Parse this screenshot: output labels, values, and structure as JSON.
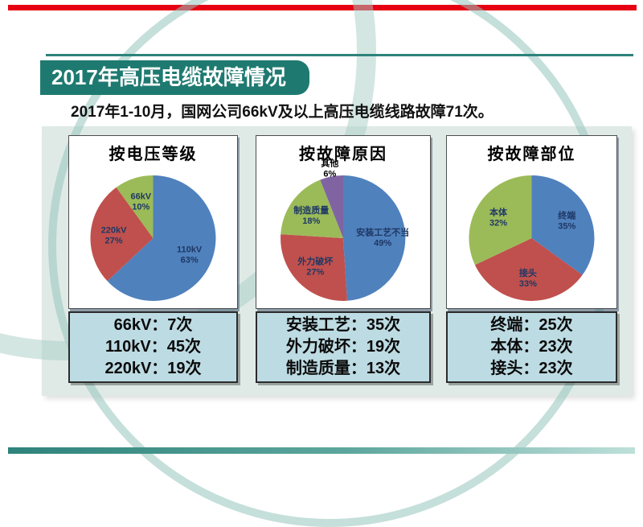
{
  "header": {
    "title": "2017年高压电缆故障情况",
    "subtitle": "2017年1-10月，国网公司66kV及以上高压电缆线路故障71次。"
  },
  "accents": {
    "top_bar_color": "#e60012",
    "title_box_color": "#1e7a70",
    "header_line_color": "#2e837b",
    "content_bg_color": "#dfeae6",
    "stats_box_color": "#bddbe3",
    "pie_label_color": "#1f3864"
  },
  "chart_data": [
    {
      "type": "pie",
      "title": "按电压等级",
      "legend_position": "none",
      "slices": [
        {
          "label": "110kV",
          "pct": 63,
          "color": "#4f81bd"
        },
        {
          "label": "220kV",
          "pct": 27,
          "color": "#c0504d"
        },
        {
          "label": "66kV",
          "pct": 10,
          "color": "#9bbb59"
        }
      ]
    },
    {
      "type": "pie",
      "title": "按故障原因",
      "legend_position": "none",
      "slices": [
        {
          "label": "安装工艺不当",
          "pct": 49,
          "color": "#4f81bd"
        },
        {
          "label": "外力破坏",
          "pct": 27,
          "color": "#c0504d"
        },
        {
          "label": "制造质量",
          "pct": 18,
          "color": "#9bbb59"
        },
        {
          "label": "其他",
          "pct": 6,
          "color": "#8064a2",
          "outside": true
        }
      ]
    },
    {
      "type": "pie",
      "title": "按故障部位",
      "legend_position": "none",
      "slices": [
        {
          "label": "终端",
          "pct": 35,
          "color": "#4f81bd"
        },
        {
          "label": "接头",
          "pct": 33,
          "color": "#c0504d"
        },
        {
          "label": "本体",
          "pct": 32,
          "color": "#9bbb59"
        }
      ]
    }
  ],
  "stats": {
    "boxes": [
      {
        "lines": [
          "66kV：7次",
          "110kV：45次",
          "220kV：19次"
        ]
      },
      {
        "lines": [
          "安装工艺：35次",
          "外力破坏：19次",
          "制造质量：13次"
        ]
      },
      {
        "lines": [
          "终端：25次",
          "本体：23次",
          "接头：23次"
        ]
      }
    ]
  }
}
